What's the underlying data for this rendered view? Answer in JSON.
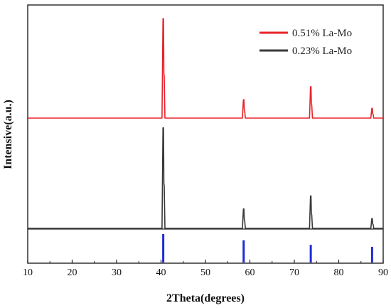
{
  "chart_data": {
    "type": "line",
    "xlabel": "2Theta(degrees)",
    "ylabel": "Intensive(a.u.)",
    "xlim": [
      10,
      90
    ],
    "xticks": [
      10,
      20,
      30,
      40,
      50,
      60,
      70,
      80,
      90
    ],
    "yticks_shown": false,
    "grid": false,
    "legend_position": "top-right",
    "series": [
      {
        "name": "0.51% La-Mo",
        "color": "#e8242b",
        "baseline": 1.0,
        "peaks": [
          {
            "x": 40.5,
            "height": 0.92
          },
          {
            "x": 58.6,
            "height": 0.17
          },
          {
            "x": 73.7,
            "height": 0.29
          },
          {
            "x": 87.5,
            "height": 0.09
          }
        ]
      },
      {
        "name": "0.23% La-Mo",
        "color": "#3a3a3a",
        "baseline": 0.0,
        "peaks": [
          {
            "x": 40.5,
            "height": 0.93
          },
          {
            "x": 58.6,
            "height": 0.18
          },
          {
            "x": 73.7,
            "height": 0.3
          },
          {
            "x": 87.5,
            "height": 0.09
          }
        ]
      }
    ],
    "reference_lines": {
      "color": "#1f2bd6",
      "x": [
        40.5,
        58.6,
        73.7,
        87.5
      ],
      "heights": [
        1.0,
        0.78,
        0.62,
        0.55
      ]
    }
  }
}
